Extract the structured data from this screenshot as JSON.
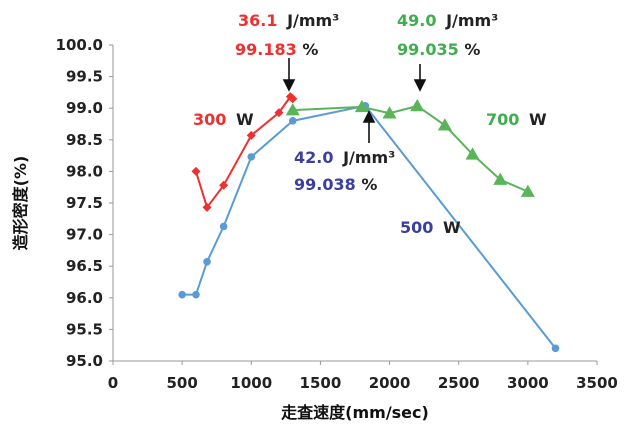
{
  "chart_data": {
    "type": "line",
    "xlabel": "走査速度(mm/sec)",
    "ylabel": "造形密度(%)",
    "xlim": [
      0,
      3500
    ],
    "ylim": [
      95.0,
      100.0
    ],
    "xticks": [
      "0",
      "500",
      "1000",
      "1500",
      "2000",
      "2500",
      "3000",
      "3500"
    ],
    "yticks": [
      "95.0",
      "95.5",
      "96.0",
      "96.5",
      "97.0",
      "97.5",
      "98.0",
      "98.5",
      "99.0",
      "99.5",
      "100.0"
    ],
    "grid": false,
    "series": [
      {
        "name": "300 W",
        "color": "#ee3030",
        "marker": "diamond",
        "points": [
          [
            600,
            98.0
          ],
          [
            680,
            97.43
          ],
          [
            800,
            97.78
          ],
          [
            1000,
            98.57
          ],
          [
            1200,
            98.93
          ],
          [
            1283,
            99.183
          ],
          [
            1300,
            99.15
          ]
        ]
      },
      {
        "name": "500 W",
        "color": "#5b9bd5",
        "marker": "circle",
        "points": [
          [
            500,
            96.05
          ],
          [
            600,
            96.05
          ],
          [
            680,
            96.57
          ],
          [
            800,
            97.13
          ],
          [
            1000,
            98.23
          ],
          [
            1300,
            98.8
          ],
          [
            1825,
            99.038
          ],
          [
            3200,
            95.2
          ]
        ]
      },
      {
        "name": "700 W",
        "color": "#5ab45a",
        "marker": "triangle",
        "points": [
          [
            1300,
            98.97
          ],
          [
            1800,
            99.02
          ],
          [
            2000,
            98.92
          ],
          [
            2200,
            99.035
          ],
          [
            2400,
            98.73
          ],
          [
            2600,
            98.27
          ],
          [
            2800,
            97.87
          ],
          [
            3000,
            97.68
          ]
        ]
      }
    ],
    "annotations": {
      "a300": {
        "value": "36.1",
        "unit": "J/mm³",
        "density": "99.183",
        "pct": "%",
        "color": "#ee3030"
      },
      "a500": {
        "value": "42.0",
        "unit": "J/mm³",
        "density": "99.038",
        "pct": "%",
        "color": "#3a3fa0"
      },
      "a700": {
        "value": "49.0",
        "unit": "J/mm³",
        "density": "99.035",
        "pct": "%",
        "color": "#3fae4e"
      },
      "label300": {
        "value": "300",
        "unit": "W",
        "color": "#ee3030"
      },
      "label500": {
        "value": "500",
        "unit": "W",
        "color": "#3a3fa0"
      },
      "label700": {
        "value": "700",
        "unit": "W",
        "color": "#3fae4e"
      }
    }
  }
}
